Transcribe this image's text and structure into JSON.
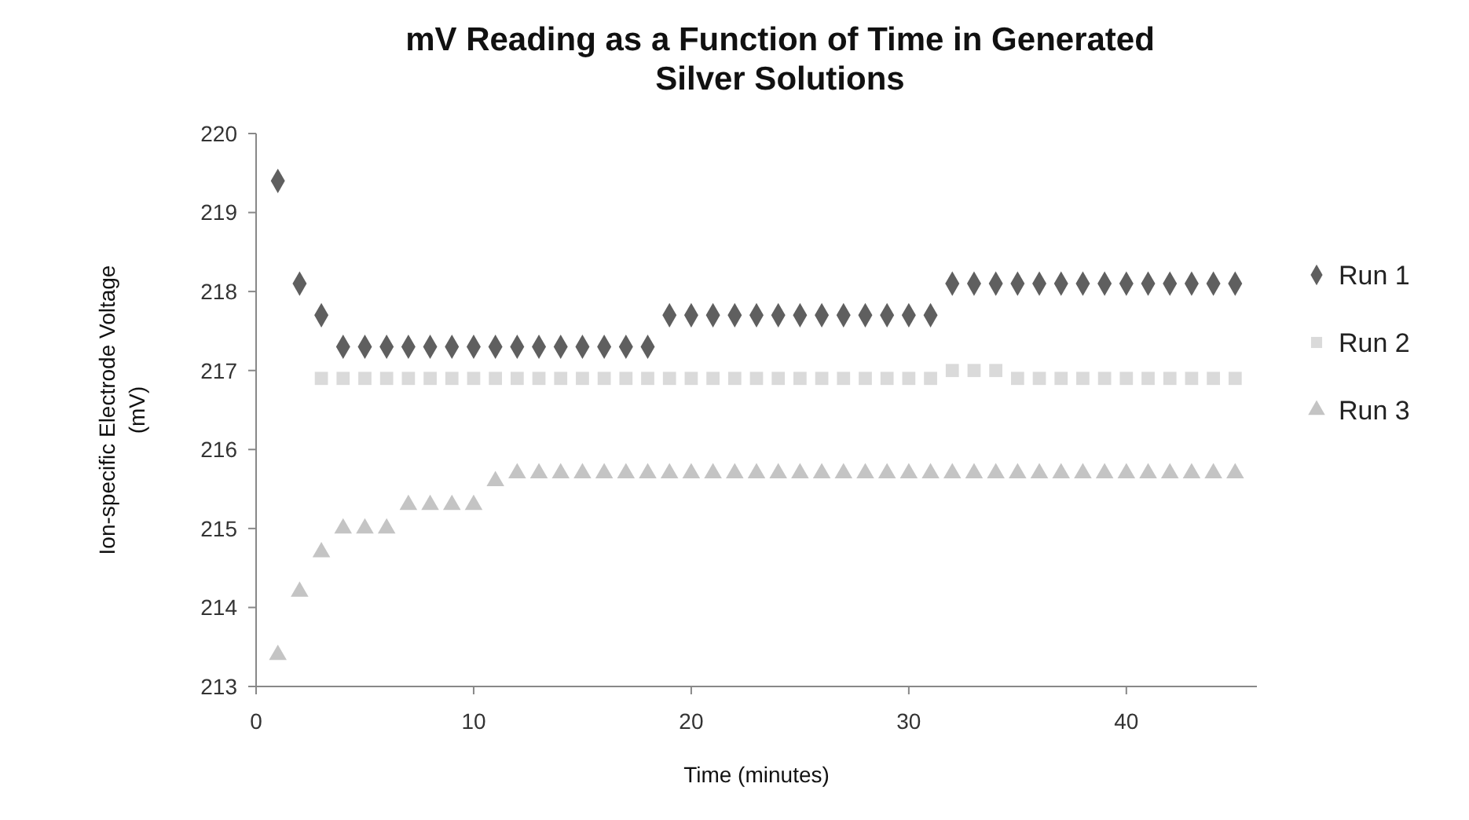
{
  "chart_data": {
    "type": "scatter",
    "title": "mV Reading as a Function of Time in Generated Silver Solutions",
    "xlabel": "Time (minutes)",
    "ylabel": "Ion-specific Electrode Voltage (mV)",
    "xlim": [
      0,
      46
    ],
    "xticks": [
      0,
      10,
      20,
      30,
      40
    ],
    "ylim": [
      213,
      220
    ],
    "yticks": [
      213,
      214,
      215,
      216,
      217,
      218,
      219,
      220
    ],
    "grid": false,
    "legend": "right",
    "series": [
      {
        "name": "Run 1",
        "color": "#5f5f5f",
        "marker": "diamond",
        "x": [
          1,
          2,
          3,
          4,
          5,
          6,
          7,
          8,
          9,
          10,
          11,
          12,
          13,
          14,
          15,
          16,
          17,
          18,
          19,
          20,
          21,
          22,
          23,
          24,
          25,
          26,
          27,
          28,
          29,
          30,
          31,
          32,
          33,
          34,
          35,
          36,
          37,
          38,
          39,
          40,
          41,
          42,
          43,
          44,
          45
        ],
        "values": [
          219.4,
          218.1,
          217.7,
          217.3,
          217.3,
          217.3,
          217.3,
          217.3,
          217.3,
          217.3,
          217.3,
          217.3,
          217.3,
          217.3,
          217.3,
          217.3,
          217.3,
          217.3,
          217.7,
          217.7,
          217.7,
          217.7,
          217.7,
          217.7,
          217.7,
          217.7,
          217.7,
          217.7,
          217.7,
          217.7,
          217.7,
          218.1,
          218.1,
          218.1,
          218.1,
          218.1,
          218.1,
          218.1,
          218.1,
          218.1,
          218.1,
          218.1,
          218.1,
          218.1,
          218.1
        ]
      },
      {
        "name": "Run 2",
        "color": "#dadada",
        "marker": "square",
        "x": [
          3,
          4,
          5,
          6,
          7,
          8,
          9,
          10,
          11,
          12,
          13,
          14,
          15,
          16,
          17,
          18,
          19,
          20,
          21,
          22,
          23,
          24,
          25,
          26,
          27,
          28,
          29,
          30,
          31,
          32,
          33,
          34,
          35,
          36,
          37,
          38,
          39,
          40,
          41,
          42,
          43,
          44,
          45
        ],
        "values": [
          216.9,
          216.9,
          216.9,
          216.9,
          216.9,
          216.9,
          216.9,
          216.9,
          216.9,
          216.9,
          216.9,
          216.9,
          216.9,
          216.9,
          216.9,
          216.9,
          216.9,
          216.9,
          216.9,
          216.9,
          216.9,
          216.9,
          216.9,
          216.9,
          216.9,
          216.9,
          216.9,
          216.9,
          216.9,
          217.0,
          217.0,
          217.0,
          216.9,
          216.9,
          216.9,
          216.9,
          216.9,
          216.9,
          216.9,
          216.9,
          216.9,
          216.9,
          216.9
        ]
      },
      {
        "name": "Run 3",
        "color": "#c4c4c4",
        "marker": "triangle",
        "x": [
          1,
          2,
          3,
          4,
          5,
          6,
          7,
          8,
          9,
          10,
          11,
          12,
          13,
          14,
          15,
          16,
          17,
          18,
          19,
          20,
          21,
          22,
          23,
          24,
          25,
          26,
          27,
          28,
          29,
          30,
          31,
          32,
          33,
          34,
          35,
          36,
          37,
          38,
          39,
          40,
          41,
          42,
          43,
          44,
          45
        ],
        "values": [
          213.4,
          214.2,
          214.7,
          215.0,
          215.0,
          215.0,
          215.3,
          215.3,
          215.3,
          215.3,
          215.6,
          215.7,
          215.7,
          215.7,
          215.7,
          215.7,
          215.7,
          215.7,
          215.7,
          215.7,
          215.7,
          215.7,
          215.7,
          215.7,
          215.7,
          215.7,
          215.7,
          215.7,
          215.7,
          215.7,
          215.7,
          215.7,
          215.7,
          215.7,
          215.7,
          215.7,
          215.7,
          215.7,
          215.7,
          215.7,
          215.7,
          215.7,
          215.7,
          215.7,
          215.7
        ]
      }
    ]
  }
}
